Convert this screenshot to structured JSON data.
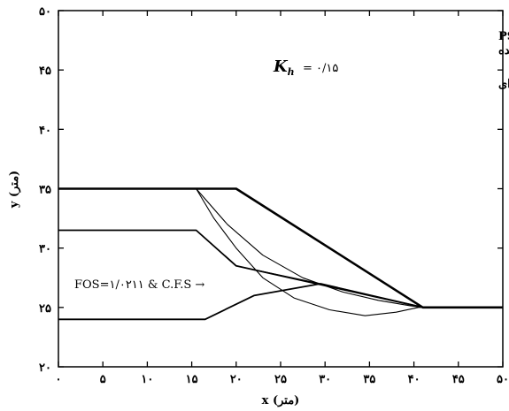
{
  "chart_data": {
    "type": "line",
    "xlabel": "x (متر)",
    "ylabel": "y (متر)",
    "xlim": [
      0,
      50
    ],
    "ylim": [
      20,
      50
    ],
    "xticks": [
      0,
      5,
      10,
      15,
      20,
      25,
      30,
      35,
      40,
      45,
      50
    ],
    "yticks": [
      20,
      25,
      30,
      35,
      40,
      45,
      50
    ],
    "xtick_labels": [
      "۰",
      "۵",
      "۱۰",
      "۱۵",
      "۲۰",
      "۲۵",
      "۳۰",
      "۳۵",
      "۴۰",
      "۴۵",
      "۵۰"
    ],
    "ytick_labels": [
      "۲۰",
      "۲۵",
      "۳۰",
      "۳۵",
      "۴۰",
      "۴۵",
      "۵۰"
    ],
    "grid": false,
    "legend_position": "top-right",
    "legend": [
      "تجزیه و تحلیل دایره‌ای PSO/SLOPE",
      "بیشاپ ساده شده",
      "تجزیه و تحلیل لرزه‌ای"
    ],
    "kh_label": "= ۰/۱۵",
    "annotation": "FOS=۱/۰۲۱۱ & C.F.S →",
    "series": [
      {
        "style": "bold",
        "points": [
          [
            0,
            35
          ],
          [
            20,
            35
          ],
          [
            41,
            25
          ],
          [
            50,
            25
          ]
        ]
      },
      {
        "style": "normal",
        "points": [
          [
            0,
            31.5
          ],
          [
            15.5,
            31.5
          ],
          [
            20,
            28.5
          ],
          [
            41,
            25
          ]
        ]
      },
      {
        "style": "normal",
        "points": [
          [
            0,
            24
          ],
          [
            16.5,
            24
          ],
          [
            22,
            26
          ],
          [
            29.5,
            27
          ],
          [
            41,
            25
          ]
        ]
      },
      {
        "style": "thin",
        "points": [
          [
            20,
            28.5
          ],
          [
            29.5,
            27
          ],
          [
            41,
            25
          ]
        ]
      },
      {
        "style": "thin",
        "points": [
          [
            15.5,
            35
          ],
          [
            17.5,
            32.5
          ],
          [
            20,
            30
          ],
          [
            23,
            27.5
          ],
          [
            26.5,
            25.8
          ],
          [
            30.5,
            24.8
          ],
          [
            34.5,
            24.3
          ],
          [
            38,
            24.6
          ],
          [
            40.5,
            25
          ],
          [
            41,
            25
          ]
        ]
      },
      {
        "style": "thin",
        "points": [
          [
            15.5,
            35
          ],
          [
            19,
            32
          ],
          [
            23,
            29.4
          ],
          [
            27.5,
            27.5
          ],
          [
            32,
            26.3
          ],
          [
            36,
            25.6
          ],
          [
            39.5,
            25.15
          ],
          [
            41,
            25
          ]
        ]
      }
    ]
  }
}
